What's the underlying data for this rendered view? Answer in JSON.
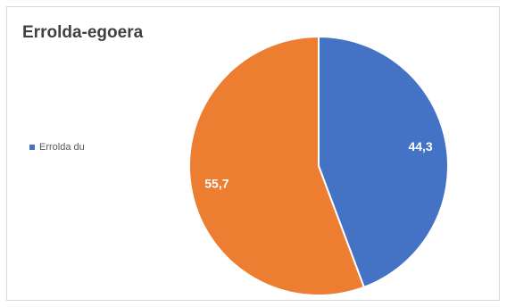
{
  "chart_data": {
    "type": "pie",
    "title": "Errolda-egoera",
    "legend_position": "left",
    "categories": [
      "Errolda du",
      ""
    ],
    "values": [
      44.3,
      55.7
    ],
    "value_labels": [
      "44,3",
      "55,7"
    ],
    "colors": [
      "#4472c4",
      "#ed7d31"
    ],
    "legend": [
      {
        "label": "Errolda du",
        "color": "#4472c4"
      }
    ]
  }
}
